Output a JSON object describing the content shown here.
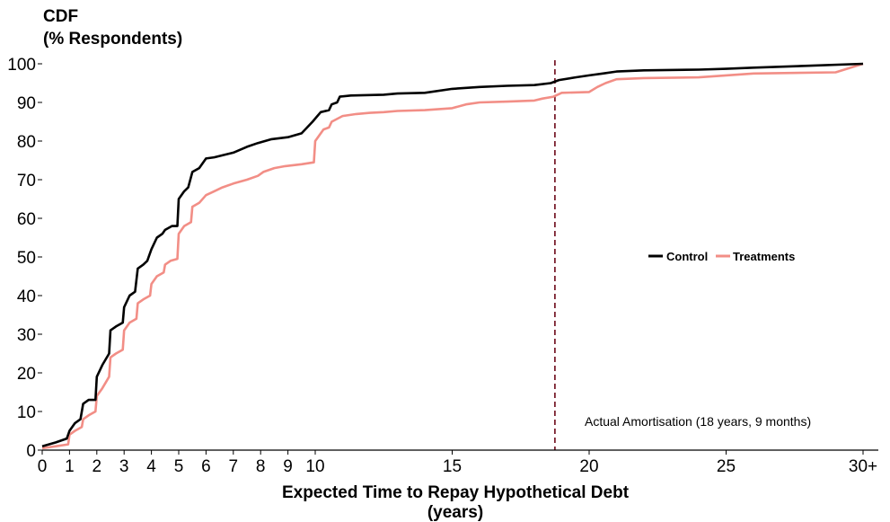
{
  "chart_data": {
    "type": "line",
    "title": "CDF",
    "subtitle": "(% Respondents)",
    "xlabel": "Expected Time to Repay Hypothetical Debt",
    "xlabel_line2": "(years)",
    "xlim": [
      0,
      30
    ],
    "ylim": [
      0,
      100
    ],
    "x_ticks": [
      {
        "v": 0,
        "label": "0"
      },
      {
        "v": 1,
        "label": "1"
      },
      {
        "v": 2,
        "label": "2"
      },
      {
        "v": 3,
        "label": "3"
      },
      {
        "v": 4,
        "label": "4"
      },
      {
        "v": 5,
        "label": "5"
      },
      {
        "v": 6,
        "label": "6"
      },
      {
        "v": 7,
        "label": "7"
      },
      {
        "v": 8,
        "label": "8"
      },
      {
        "v": 9,
        "label": "9"
      },
      {
        "v": 10,
        "label": "10"
      },
      {
        "v": 15,
        "label": "15"
      },
      {
        "v": 20,
        "label": "20"
      },
      {
        "v": 25,
        "label": "25"
      },
      {
        "v": 30,
        "label": "30+"
      }
    ],
    "y_ticks": [
      {
        "v": 0,
        "label": "0"
      },
      {
        "v": 10,
        "label": "10"
      },
      {
        "v": 20,
        "label": "20"
      },
      {
        "v": 30,
        "label": "30"
      },
      {
        "v": 40,
        "label": "40"
      },
      {
        "v": 50,
        "label": "50"
      },
      {
        "v": 60,
        "label": "60"
      },
      {
        "v": 70,
        "label": "70"
      },
      {
        "v": 80,
        "label": "80"
      },
      {
        "v": 90,
        "label": "90"
      },
      {
        "v": 100,
        "label": "100"
      }
    ],
    "grid": false,
    "legend_position": "right-middle",
    "series": [
      {
        "name": "Control",
        "color": "#000000",
        "points": [
          [
            0,
            1
          ],
          [
            0.5,
            2
          ],
          [
            0.9,
            3
          ],
          [
            1,
            5
          ],
          [
            1.2,
            7
          ],
          [
            1.4,
            8
          ],
          [
            1.5,
            12
          ],
          [
            1.7,
            13
          ],
          [
            1.95,
            13
          ],
          [
            2,
            19
          ],
          [
            2.2,
            22
          ],
          [
            2.45,
            25
          ],
          [
            2.5,
            31
          ],
          [
            2.7,
            32
          ],
          [
            2.95,
            33
          ],
          [
            3,
            37
          ],
          [
            3.2,
            40
          ],
          [
            3.4,
            41
          ],
          [
            3.5,
            47
          ],
          [
            3.7,
            48
          ],
          [
            3.85,
            49
          ],
          [
            4,
            52
          ],
          [
            4.2,
            55
          ],
          [
            4.4,
            56
          ],
          [
            4.5,
            57
          ],
          [
            4.75,
            58
          ],
          [
            4.95,
            58
          ],
          [
            5,
            65
          ],
          [
            5.2,
            67
          ],
          [
            5.35,
            68
          ],
          [
            5.5,
            72
          ],
          [
            5.75,
            73
          ],
          [
            6,
            75.5
          ],
          [
            6.3,
            75.8
          ],
          [
            6.6,
            76.3
          ],
          [
            7,
            77
          ],
          [
            7.5,
            78.5
          ],
          [
            7.9,
            79.5
          ],
          [
            8.4,
            80.5
          ],
          [
            9,
            81
          ],
          [
            9.5,
            82
          ],
          [
            9.9,
            85
          ],
          [
            10.2,
            87.5
          ],
          [
            10.5,
            88
          ],
          [
            10.6,
            89.5
          ],
          [
            10.8,
            90
          ],
          [
            10.9,
            91.5
          ],
          [
            11.3,
            91.8
          ],
          [
            12.5,
            92
          ],
          [
            13,
            92.3
          ],
          [
            14,
            92.5
          ],
          [
            15,
            93.5
          ],
          [
            16,
            94
          ],
          [
            17,
            94.3
          ],
          [
            18,
            94.5
          ],
          [
            18.6,
            95
          ],
          [
            18.9,
            95.8
          ],
          [
            19.5,
            96.5
          ],
          [
            20,
            97
          ],
          [
            20.5,
            97.5
          ],
          [
            21,
            98
          ],
          [
            22,
            98.3
          ],
          [
            24,
            98.5
          ],
          [
            25,
            98.7
          ],
          [
            26,
            99
          ],
          [
            28,
            99.5
          ],
          [
            30,
            100
          ]
        ]
      },
      {
        "name": "Treatments",
        "color": "#f28e86",
        "points": [
          [
            0,
            0.5
          ],
          [
            0.5,
            1
          ],
          [
            0.95,
            1.5
          ],
          [
            1,
            4
          ],
          [
            1.2,
            5
          ],
          [
            1.45,
            6
          ],
          [
            1.5,
            8
          ],
          [
            1.7,
            9
          ],
          [
            1.95,
            10
          ],
          [
            2,
            14
          ],
          [
            2.2,
            16
          ],
          [
            2.45,
            19
          ],
          [
            2.5,
            24
          ],
          [
            2.7,
            25
          ],
          [
            2.95,
            26
          ],
          [
            3,
            31
          ],
          [
            3.2,
            33
          ],
          [
            3.45,
            34
          ],
          [
            3.5,
            38
          ],
          [
            3.7,
            39
          ],
          [
            3.95,
            40
          ],
          [
            4,
            43
          ],
          [
            4.2,
            45
          ],
          [
            4.45,
            46
          ],
          [
            4.5,
            48
          ],
          [
            4.7,
            49
          ],
          [
            4.95,
            49.5
          ],
          [
            5,
            56
          ],
          [
            5.2,
            58
          ],
          [
            5.45,
            59
          ],
          [
            5.5,
            63
          ],
          [
            5.75,
            64
          ],
          [
            6,
            66
          ],
          [
            6.3,
            67
          ],
          [
            6.6,
            68
          ],
          [
            7,
            69
          ],
          [
            7.5,
            70
          ],
          [
            7.9,
            71
          ],
          [
            8.1,
            72
          ],
          [
            8.5,
            73
          ],
          [
            8.9,
            73.5
          ],
          [
            9.5,
            74
          ],
          [
            9.95,
            74.5
          ],
          [
            10,
            80
          ],
          [
            10.3,
            83
          ],
          [
            10.5,
            83.5
          ],
          [
            10.6,
            85
          ],
          [
            11,
            86.5
          ],
          [
            11.5,
            87
          ],
          [
            12,
            87.3
          ],
          [
            12.5,
            87.5
          ],
          [
            13,
            87.8
          ],
          [
            14,
            88
          ],
          [
            15,
            88.5
          ],
          [
            15.5,
            89.5
          ],
          [
            16,
            90
          ],
          [
            17,
            90.2
          ],
          [
            18,
            90.5
          ],
          [
            18.3,
            91
          ],
          [
            18.7,
            91.5
          ],
          [
            19,
            92.5
          ],
          [
            20,
            92.7
          ],
          [
            20.3,
            94
          ],
          [
            20.6,
            95
          ],
          [
            21,
            96
          ],
          [
            22,
            96.3
          ],
          [
            24,
            96.5
          ],
          [
            25,
            97
          ],
          [
            26,
            97.5
          ],
          [
            29,
            97.8
          ],
          [
            30,
            100
          ]
        ]
      }
    ],
    "reference_line": {
      "x": 18.75,
      "color": "#7a1f2e",
      "label": "Actual Amortisation (18 years, 9 months)"
    }
  }
}
